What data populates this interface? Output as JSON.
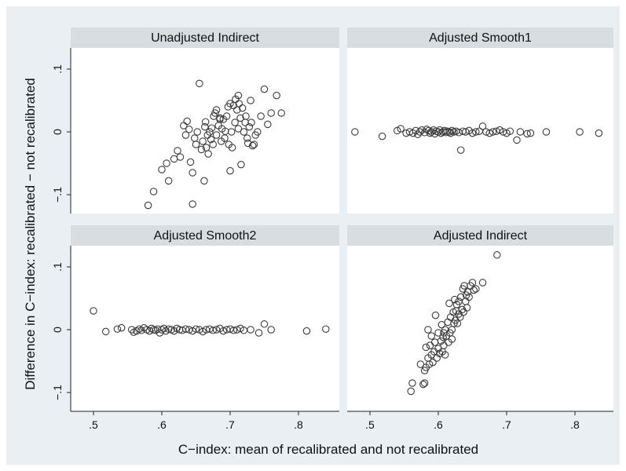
{
  "chart_data": {
    "type": "scatter",
    "xlabel": "C−index: mean of recalibrated and not recalibrated",
    "ylabel": "Difference in C−index: recalibrated − not recalibrated",
    "xlim": [
      0.46,
      0.845
    ],
    "ylim": [
      -0.127,
      0.13
    ],
    "x_ticks": [
      0.5,
      0.6,
      0.7,
      0.8
    ],
    "x_tick_labels": [
      ".5",
      ".6",
      ".7",
      ".8"
    ],
    "y_ticks": [
      -0.1,
      0,
      0.1
    ],
    "y_tick_labels": [
      "−.1",
      "0",
      ".1"
    ],
    "grid": "none",
    "panels": [
      {
        "title": "Unadjusted Indirect",
        "points": [
          [
            0.58,
            -0.117
          ],
          [
            0.588,
            -0.095
          ],
          [
            0.6,
            -0.06
          ],
          [
            0.61,
            -0.078
          ],
          [
            0.607,
            -0.05
          ],
          [
            0.618,
            -0.043
          ],
          [
            0.623,
            -0.03
          ],
          [
            0.627,
            -0.04
          ],
          [
            0.632,
            0.01
          ],
          [
            0.637,
            0.017
          ],
          [
            0.635,
            -0.005
          ],
          [
            0.64,
            0.004
          ],
          [
            0.642,
            -0.048
          ],
          [
            0.645,
            -0.065
          ],
          [
            0.645,
            -0.115
          ],
          [
            0.648,
            -0.01
          ],
          [
            0.65,
            -0.02
          ],
          [
            0.652,
            0.0
          ],
          [
            0.655,
            0.077
          ],
          [
            0.658,
            -0.028
          ],
          [
            0.66,
            -0.015
          ],
          [
            0.662,
            -0.078
          ],
          [
            0.663,
            0.008
          ],
          [
            0.665,
            -0.025
          ],
          [
            0.667,
            -0.005
          ],
          [
            0.668,
            -0.035
          ],
          [
            0.67,
            0.0
          ],
          [
            0.672,
            -0.012
          ],
          [
            0.673,
            0.006
          ],
          [
            0.675,
            -0.02
          ],
          [
            0.676,
            0.025
          ],
          [
            0.678,
            0.03
          ],
          [
            0.68,
            0.035
          ],
          [
            0.68,
            -0.005
          ],
          [
            0.683,
            0.01
          ],
          [
            0.685,
            0.02
          ],
          [
            0.687,
            -0.015
          ],
          [
            0.688,
            0.005
          ],
          [
            0.69,
            0.02
          ],
          [
            0.692,
            -0.01
          ],
          [
            0.695,
            0.025
          ],
          [
            0.697,
            0.04
          ],
          [
            0.698,
            -0.02
          ],
          [
            0.7,
            0.045
          ],
          [
            0.7,
            -0.062
          ],
          [
            0.702,
            0.0
          ],
          [
            0.703,
            -0.025
          ],
          [
            0.705,
            0.042
          ],
          [
            0.707,
            0.015
          ],
          [
            0.708,
            0.052
          ],
          [
            0.71,
            0.035
          ],
          [
            0.712,
            0.005
          ],
          [
            0.713,
            0.045
          ],
          [
            0.715,
            0.022
          ],
          [
            0.716,
            -0.052
          ],
          [
            0.718,
            0.038
          ],
          [
            0.72,
            0.0
          ],
          [
            0.722,
            0.015
          ],
          [
            0.723,
            0.025
          ],
          [
            0.725,
            -0.01
          ],
          [
            0.726,
            -0.018
          ],
          [
            0.728,
            0.008
          ],
          [
            0.73,
            0.05
          ],
          [
            0.731,
            0.015
          ],
          [
            0.733,
            -0.022
          ],
          [
            0.735,
            -0.02
          ],
          [
            0.737,
            -0.005
          ],
          [
            0.74,
            0.0
          ],
          [
            0.745,
            0.025
          ],
          [
            0.75,
            0.068
          ],
          [
            0.755,
            0.012
          ],
          [
            0.76,
            0.03
          ],
          [
            0.768,
            0.058
          ],
          [
            0.775,
            0.03
          ],
          [
            0.685,
            0.022
          ],
          [
            0.664,
            0.016
          ],
          [
            0.712,
            0.058
          ],
          [
            0.693,
            0.001
          ]
        ]
      },
      {
        "title": "Adjusted Smooth1",
        "points": [
          [
            0.478,
            0.0
          ],
          [
            0.518,
            -0.007
          ],
          [
            0.54,
            0.002
          ],
          [
            0.545,
            0.005
          ],
          [
            0.553,
            -0.002
          ],
          [
            0.558,
            0.0
          ],
          [
            0.563,
            -0.002
          ],
          [
            0.567,
            0.002
          ],
          [
            0.57,
            -0.004
          ],
          [
            0.573,
            0.0
          ],
          [
            0.576,
            0.003
          ],
          [
            0.58,
            -0.001
          ],
          [
            0.583,
            0.004
          ],
          [
            0.586,
            0.002
          ],
          [
            0.588,
            -0.002
          ],
          [
            0.59,
            0.0
          ],
          [
            0.593,
            0.003
          ],
          [
            0.595,
            -0.003
          ],
          [
            0.597,
            0.001
          ],
          [
            0.6,
            0.0
          ],
          [
            0.602,
            0.003
          ],
          [
            0.604,
            -0.002
          ],
          [
            0.607,
            0.0
          ],
          [
            0.609,
            0.002
          ],
          [
            0.611,
            -0.001
          ],
          [
            0.613,
            0.001
          ],
          [
            0.616,
            0.0
          ],
          [
            0.618,
            -0.002
          ],
          [
            0.62,
            0.002
          ],
          [
            0.623,
            0.0
          ],
          [
            0.626,
            0.001
          ],
          [
            0.63,
            -0.001
          ],
          [
            0.633,
            -0.029
          ],
          [
            0.636,
            0.001
          ],
          [
            0.64,
            0.0
          ],
          [
            0.645,
            0.002
          ],
          [
            0.65,
            -0.002
          ],
          [
            0.655,
            0.0
          ],
          [
            0.66,
            0.001
          ],
          [
            0.665,
            0.009
          ],
          [
            0.67,
            0.0
          ],
          [
            0.675,
            -0.002
          ],
          [
            0.68,
            0.0
          ],
          [
            0.685,
            0.001
          ],
          [
            0.69,
            0.003
          ],
          [
            0.695,
            0.0
          ],
          [
            0.7,
            -0.002
          ],
          [
            0.705,
            0.001
          ],
          [
            0.715,
            -0.013
          ],
          [
            0.72,
            0.0
          ],
          [
            0.73,
            -0.003
          ],
          [
            0.735,
            -0.002
          ],
          [
            0.758,
            0.0
          ],
          [
            0.807,
            0.0
          ],
          [
            0.835,
            -0.002
          ]
        ]
      },
      {
        "title": "Adjusted Smooth2",
        "points": [
          [
            0.5,
            0.03
          ],
          [
            0.518,
            -0.003
          ],
          [
            0.535,
            0.001
          ],
          [
            0.541,
            0.003
          ],
          [
            0.556,
            0.0
          ],
          [
            0.559,
            -0.004
          ],
          [
            0.563,
            -0.002
          ],
          [
            0.567,
            0.001
          ],
          [
            0.57,
            -0.001
          ],
          [
            0.574,
            0.003
          ],
          [
            0.578,
            0.0
          ],
          [
            0.582,
            -0.002
          ],
          [
            0.585,
            0.002
          ],
          [
            0.588,
            0.0
          ],
          [
            0.591,
            -0.001
          ],
          [
            0.594,
            0.001
          ],
          [
            0.597,
            -0.005
          ],
          [
            0.6,
            0.0
          ],
          [
            0.603,
            0.002
          ],
          [
            0.606,
            -0.002
          ],
          [
            0.61,
            0.001
          ],
          [
            0.614,
            0.0
          ],
          [
            0.618,
            -0.002
          ],
          [
            0.622,
            0.002
          ],
          [
            0.626,
            0.0
          ],
          [
            0.63,
            -0.001
          ],
          [
            0.635,
            0.001
          ],
          [
            0.64,
            0.0
          ],
          [
            0.645,
            -0.002
          ],
          [
            0.65,
            0.001
          ],
          [
            0.655,
            0.0
          ],
          [
            0.66,
            -0.003
          ],
          [
            0.665,
            0.0
          ],
          [
            0.67,
            0.001
          ],
          [
            0.675,
            -0.001
          ],
          [
            0.68,
            0.0
          ],
          [
            0.685,
            0.002
          ],
          [
            0.69,
            -0.002
          ],
          [
            0.695,
            0.0
          ],
          [
            0.7,
            0.001
          ],
          [
            0.705,
            -0.001
          ],
          [
            0.71,
            0.0
          ],
          [
            0.715,
            0.002
          ],
          [
            0.72,
            -0.001
          ],
          [
            0.73,
            0.0
          ],
          [
            0.742,
            -0.005
          ],
          [
            0.75,
            0.009
          ],
          [
            0.76,
            0.0
          ],
          [
            0.812,
            -0.002
          ],
          [
            0.84,
            0.001
          ]
        ]
      },
      {
        "title": "Adjusted Indirect",
        "points": [
          [
            0.56,
            -0.098
          ],
          [
            0.562,
            -0.085
          ],
          [
            0.578,
            -0.087
          ],
          [
            0.58,
            -0.085
          ],
          [
            0.58,
            -0.065
          ],
          [
            0.582,
            -0.06
          ],
          [
            0.582,
            -0.028
          ],
          [
            0.585,
            -0.045
          ],
          [
            0.585,
            0.0
          ],
          [
            0.587,
            -0.055
          ],
          [
            0.588,
            -0.025
          ],
          [
            0.59,
            -0.04
          ],
          [
            0.59,
            -0.01
          ],
          [
            0.592,
            -0.052
          ],
          [
            0.594,
            -0.035
          ],
          [
            0.595,
            -0.02
          ],
          [
            0.596,
            0.023
          ],
          [
            0.598,
            -0.045
          ],
          [
            0.6,
            -0.03
          ],
          [
            0.6,
            -0.005
          ],
          [
            0.602,
            -0.038
          ],
          [
            0.604,
            -0.018
          ],
          [
            0.605,
            0.008
          ],
          [
            0.606,
            -0.035
          ],
          [
            0.607,
            -0.012
          ],
          [
            0.608,
            -0.025
          ],
          [
            0.61,
            0.0
          ],
          [
            0.61,
            -0.04
          ],
          [
            0.612,
            -0.01
          ],
          [
            0.614,
            0.012
          ],
          [
            0.615,
            -0.02
          ],
          [
            0.616,
            0.042
          ],
          [
            0.617,
            -0.005
          ],
          [
            0.618,
            0.02
          ],
          [
            0.62,
            0.0
          ],
          [
            0.62,
            -0.015
          ],
          [
            0.622,
            0.028
          ],
          [
            0.623,
            0.01
          ],
          [
            0.624,
            0.048
          ],
          [
            0.625,
            0.015
          ],
          [
            0.626,
            0.03
          ],
          [
            0.628,
            0.01
          ],
          [
            0.63,
            0.025
          ],
          [
            0.63,
            0.045
          ],
          [
            0.632,
            0.02
          ],
          [
            0.633,
            0.052
          ],
          [
            0.635,
            0.032
          ],
          [
            0.636,
            0.065
          ],
          [
            0.637,
            0.028
          ],
          [
            0.638,
            0.07
          ],
          [
            0.64,
            0.045
          ],
          [
            0.641,
            0.055
          ],
          [
            0.642,
            0.035
          ],
          [
            0.643,
            0.06
          ],
          [
            0.645,
            0.052
          ],
          [
            0.647,
            0.07
          ],
          [
            0.65,
            0.075
          ],
          [
            0.652,
            0.063
          ],
          [
            0.655,
            0.065
          ],
          [
            0.665,
            0.075
          ],
          [
            0.686,
            0.119
          ],
          [
            0.574,
            -0.055
          ],
          [
            0.608,
            -0.005
          ],
          [
            0.627,
            0.04
          ]
        ]
      }
    ]
  }
}
